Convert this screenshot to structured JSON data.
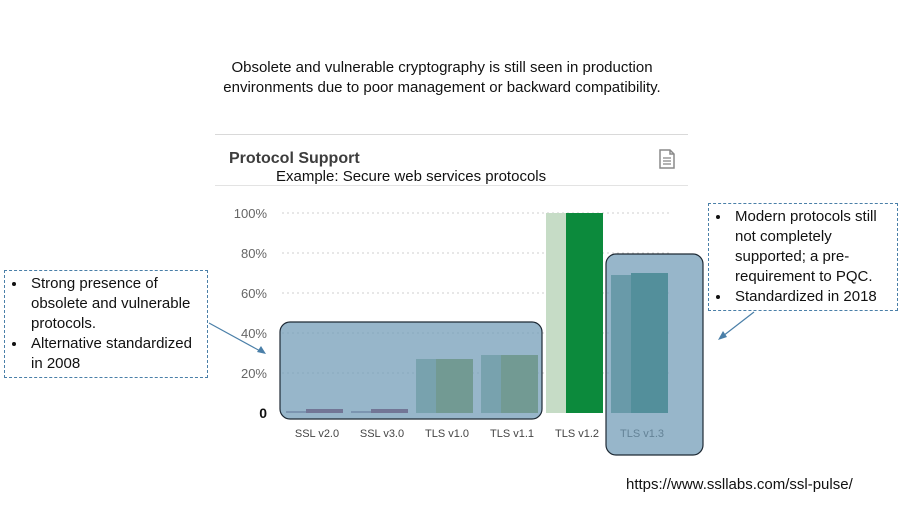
{
  "heading": "Obsolete and vulnerable cryptography is still seen in production environments due to poor management or backward compatibility.",
  "icons": {
    "document": "document-icon"
  },
  "chart_data": {
    "type": "bar",
    "title": "Protocol Support",
    "subtitle": "Example: Secure web services protocols",
    "categories": [
      "SSL v2.0",
      "SSL v3.0",
      "TLS v1.0",
      "TLS v1.1",
      "TLS v1.2",
      "TLS v1.3"
    ],
    "series": [
      {
        "values": [
          1,
          1,
          27,
          29,
          100,
          69
        ]
      },
      {
        "values": [
          2,
          2,
          27,
          29,
          100,
          70
        ]
      }
    ],
    "series_colors": {
      "previous": [
        "#9a8aa0",
        "#9a8aa0",
        "#8fb89a",
        "#8fb89a",
        "#c6dcc6",
        "#5a9a8a"
      ],
      "current": [
        "#7a1a44",
        "#7a1a44",
        "#7b9a3c",
        "#7b9a3c",
        "#0c8a3c",
        "#0e7358"
      ]
    },
    "yticks": [
      "0",
      "20%",
      "40%",
      "60%",
      "80%",
      "100%"
    ],
    "ylim": [
      0,
      100
    ],
    "grid": true
  },
  "highlight_color": "#6f9ab5",
  "callouts": {
    "left": [
      "Strong presence of obsolete and vulnerable protocols.",
      "Alternative standardized in 2008"
    ],
    "right": [
      "Modern protocols still not completely supported; a pre-requirement to PQC.",
      "Standardized in 2018"
    ]
  },
  "source": "https://www.ssllabs.com/ssl-pulse/"
}
